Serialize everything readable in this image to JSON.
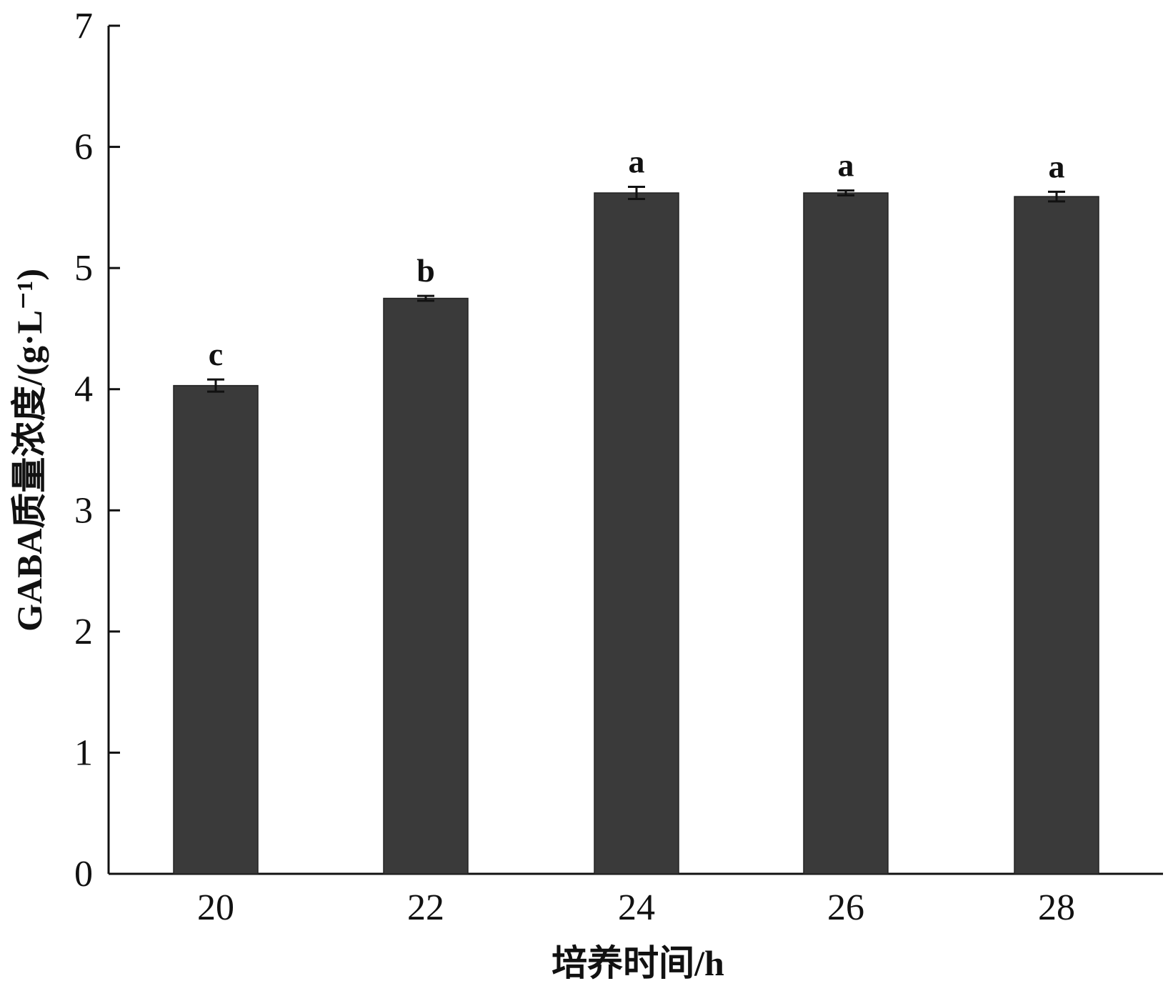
{
  "chart_data": {
    "type": "bar",
    "title": "",
    "xlabel": "培养时间/h",
    "ylabel": "GABA质量浓度/(g·L⁻¹)",
    "categories": [
      "20",
      "22",
      "24",
      "26",
      "28"
    ],
    "values": [
      4.03,
      4.75,
      5.62,
      5.62,
      5.59
    ],
    "errors": [
      0.05,
      0.02,
      0.05,
      0.02,
      0.04
    ],
    "significance": [
      "c",
      "b",
      "a",
      "a",
      "a"
    ],
    "ylim": [
      0,
      7
    ],
    "yticks": [
      "0",
      "1",
      "2",
      "3",
      "4",
      "5",
      "6",
      "7"
    ],
    "grid": false,
    "legend": "none",
    "bar_color": "#3a3a3a",
    "axis_color": "#111111"
  }
}
